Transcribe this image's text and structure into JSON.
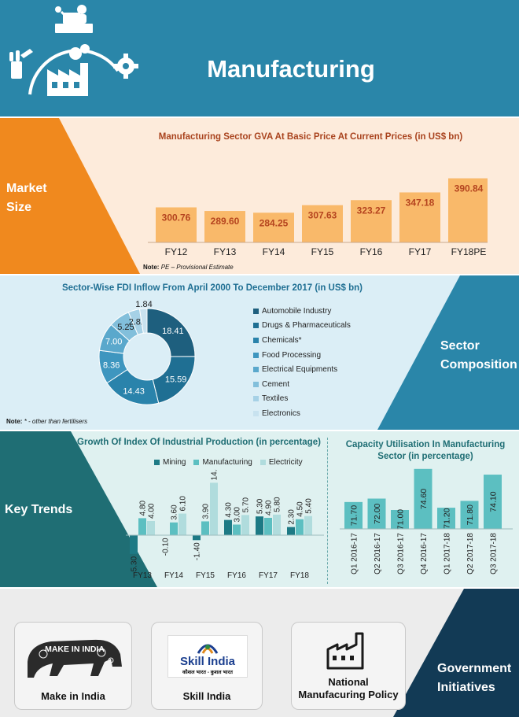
{
  "page_title": "Manufacturing",
  "sections": {
    "market_size": "Market Size",
    "sector_composition": "Sector Composition",
    "key_trends": "Key Trends",
    "government_initiatives": "Government Initiatives"
  },
  "colors": {
    "header_blue": "#2a86a9",
    "orange": "#f0891e",
    "bar_orange": "#f9b96a",
    "teal": "#1f6e74",
    "navy": "#123a55"
  },
  "gva": {
    "title": "Manufacturing Sector GVA At Basic Price At Current Prices (in US$ bn)",
    "note_label": "Note:",
    "note_text": "PE – Provisional Estimate"
  },
  "fdi": {
    "title": "Sector-Wise FDI Inflow From April 2000 To December 2017 (in US$ bn)",
    "note_label": "Note:",
    "note_text": "* - other than fertilisers"
  },
  "iip": {
    "title": "Growth Of Index Of Industrial Production (in percentage)"
  },
  "capacity": {
    "title_line1": "Capacity Utilisation In Manufacturing",
    "title_line2": "Sector (in percentage)"
  },
  "initiatives": [
    {
      "label": "Make in India",
      "logo_text": "MAKE IN INDIA"
    },
    {
      "label": "Skill India",
      "logo_text": "Skill India",
      "logo_subtext": "कौशल भारत - कुशल भारत"
    },
    {
      "label_line1": "National",
      "label_line2": "Manufacuring Policy"
    }
  ],
  "icons": [
    "worker-laptop-icon",
    "factory-icon",
    "gear-icon",
    "wrench-hand-icon"
  ],
  "chart_data": [
    {
      "id": "gva",
      "type": "bar",
      "title": "Manufacturing Sector GVA At Basic Price At Current Prices (in US$ bn)",
      "categories": [
        "FY12",
        "FY13",
        "FY14",
        "FY15",
        "FY16",
        "FY17",
        "FY18PE"
      ],
      "values": [
        300.76,
        289.6,
        284.25,
        307.63,
        323.27,
        347.18,
        390.84
      ],
      "value_labels": [
        "300.76",
        "289.60",
        "284.25",
        "307.63",
        "323.27",
        "347.18",
        "390.84"
      ],
      "ylim": [
        0,
        400
      ],
      "color": "#f9b96a",
      "label_color": "#b5441f",
      "grid": false
    },
    {
      "id": "fdi",
      "type": "pie",
      "title": "Sector-Wise FDI Inflow From April 2000 To December 2017 (in US$ bn)",
      "categories": [
        "Automobile Industry",
        "Drugs & Pharmaceuticals",
        "Chemicals*",
        "Food Processing",
        "Electrical Equipments",
        "Cement",
        "Textiles",
        "Electronics"
      ],
      "legend_labels": [
        "Automobile Industry",
        "Drugs & Pharmaceuticals",
        "Chemicals*",
        "Food Processing",
        "Electrical Equipments",
        "Cement",
        "Textiles",
        "Electronics"
      ],
      "values": [
        18.41,
        15.59,
        14.43,
        8.36,
        7.0,
        5.25,
        2.82,
        1.84
      ],
      "value_labels": [
        "18.41",
        "15.59",
        "14.43",
        "8.36",
        "7.00",
        "5.25",
        "2.82",
        "1.84"
      ],
      "colors": [
        "#1e5f7e",
        "#1f6f93",
        "#2a83ab",
        "#3e96bf",
        "#5aa8cc",
        "#82bfdb",
        "#a6d1e6",
        "#c8e2ef"
      ],
      "donut": true,
      "legend_position": "right"
    },
    {
      "id": "iip",
      "type": "bar",
      "title": "Growth Of Index Of Industrial Production (in percentage)",
      "categories": [
        "FY13",
        "FY14",
        "FY15",
        "FY16",
        "FY17",
        "FY18"
      ],
      "series": [
        {
          "name": "Mining",
          "values": [
            -5.3,
            -0.1,
            -1.4,
            4.3,
            5.3,
            2.3
          ],
          "labels": [
            "-5.30",
            "-0.10",
            "-1.40",
            "4.30",
            "5.30",
            "2.30"
          ],
          "color": "#1d7a85"
        },
        {
          "name": "Manufacturing",
          "values": [
            4.8,
            3.6,
            3.9,
            3.0,
            4.9,
            4.5
          ],
          "labels": [
            "4.80",
            "3.60",
            "3.90",
            "3.00",
            "4.90",
            "4.50"
          ],
          "color": "#5cbfc1"
        },
        {
          "name": "Electricity",
          "values": [
            4.0,
            6.1,
            14.8,
            5.7,
            5.8,
            5.4
          ],
          "labels": [
            "4.00",
            "6.10",
            "14.80",
            "5.70",
            "5.80",
            "5.40"
          ],
          "color": "#b0dcdd"
        }
      ],
      "ylim": [
        -5.3,
        14.8
      ],
      "legend_position": "top"
    },
    {
      "id": "capacity",
      "type": "bar",
      "title": "Capacity Utilisation In Manufacturing Sector (in percentage)",
      "categories": [
        "Q1 2016-17",
        "Q2 2016-17",
        "Q3 2016-17",
        "Q4 2016-17",
        "Q1 2017-18",
        "Q2 2017-18",
        "Q3 2017-18"
      ],
      "values": [
        71.7,
        72.0,
        71.0,
        74.6,
        71.2,
        71.8,
        74.1
      ],
      "value_labels": [
        "71.70",
        "72.00",
        "71.00",
        "74.60",
        "71.20",
        "71.80",
        "74.10"
      ],
      "ylim": [
        68,
        75
      ],
      "color": "#5cbfc1"
    }
  ]
}
